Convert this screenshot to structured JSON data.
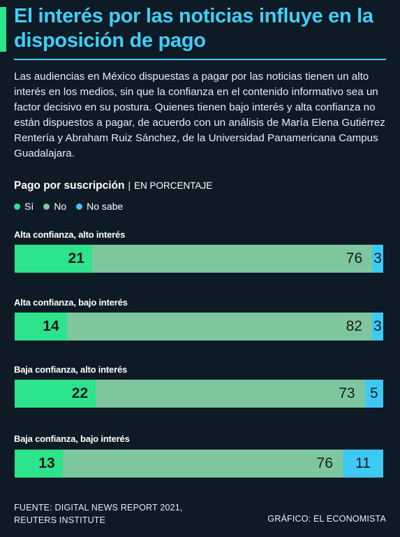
{
  "title": "El interés por las noticias influye en la disposición de pago",
  "intro": "Las audiencias en México dispuestas a pagar por las noticias tienen un alto interés en los medios, sin que la confianza en el contenido informativo sea un factor decisivo en su postura. Quienes tienen bajo interés y alta confianza no están dispuestos a pagar, de acuerdo con un análisis de María Elena Gutiérrez Rentería y Abraham Ruiz Sánchez, de la Universidad Panamericana Campus Guadalajara.",
  "subhead": {
    "main": "Pago por suscripción",
    "sep": "|",
    "unit": "EN PORCENTAJE"
  },
  "colors": {
    "si": "#2de38b",
    "no": "#7ec79e",
    "no_sabe": "#3ec9f5",
    "title": "#3ed0f6"
  },
  "chart_data": {
    "type": "bar",
    "orientation": "horizontal",
    "stacked": true,
    "categories": [
      "Alta confianza, alto interés",
      "Alta confianza, bajo interés",
      "Baja confianza, alto interés",
      "Baja confianza, bajo interés"
    ],
    "series": [
      {
        "name": "Sí",
        "values": [
          21,
          14,
          22,
          13
        ]
      },
      {
        "name": "No",
        "values": [
          76,
          82,
          73,
          76
        ]
      },
      {
        "name": "No sabe",
        "values": [
          3,
          3,
          5,
          11
        ]
      }
    ],
    "legend_position": "top-left"
  },
  "footer": {
    "source_line1": "FUENTE: DIGITAL NEWS REPORT 2021,",
    "source_line2": "REUTERS INSTITUTE",
    "credit": "GRÁFICO: EL ECONOMISTA"
  }
}
